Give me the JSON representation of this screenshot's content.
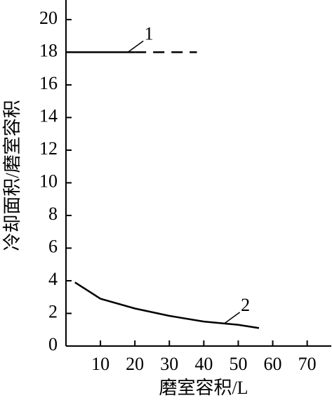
{
  "chart_data": {
    "type": "line",
    "x_label": "磨室容积/L",
    "y_label": "冷却面积/磨室容积",
    "xlim": [
      0,
      77
    ],
    "ylim": [
      0,
      21.2
    ],
    "xticks": [
      10,
      20,
      30,
      40,
      50,
      60,
      70
    ],
    "yticks": [
      0,
      2,
      4,
      6,
      8,
      10,
      12,
      14,
      16,
      18,
      20
    ],
    "color": "#000000",
    "series": [
      {
        "name": "1",
        "x": [
          0,
          20
        ],
        "values": [
          18,
          18
        ]
      },
      {
        "x": [
          20,
          38
        ],
        "values": [
          18,
          18
        ],
        "dashed": true
      },
      {
        "name": "2",
        "x": [
          2.6,
          10,
          20,
          30,
          40,
          50,
          56
        ],
        "values": [
          3.9,
          2.9,
          2.3,
          1.85,
          1.5,
          1.3,
          1.1
        ]
      }
    ]
  }
}
